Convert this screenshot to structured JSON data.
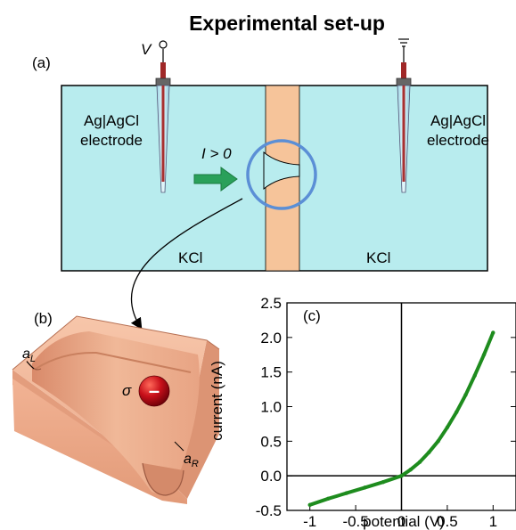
{
  "title": "Experimental set-up",
  "panel_a": {
    "label": "(a)",
    "voltage_symbol": "V",
    "left_electrode": [
      "Ag|AgCl",
      "electrode"
    ],
    "right_electrode": [
      "Ag|AgCl",
      "electrode"
    ],
    "current_label": "I > 0",
    "left_solution": "KCl",
    "right_solution": "KCl",
    "colors": {
      "bath": "#b8ecee",
      "membrane": "#f6c49a",
      "highlight_circle": "#5b8fd6",
      "arrow": "#2aa05a"
    }
  },
  "panel_b": {
    "label": "(b)",
    "left_radius": "a",
    "left_radius_sub": "L",
    "right_radius": "a",
    "right_radius_sub": "R",
    "charge_symbol": "σ",
    "charge_sign": "–"
  },
  "panel_c": {
    "label": "(c)",
    "chart_data": {
      "type": "line",
      "xlabel": "potential (V)",
      "ylabel": "current (nA)",
      "xlim": [
        -1.25,
        1.25
      ],
      "ylim": [
        -0.5,
        2.5
      ],
      "xticks": [
        "-1",
        "-0.5",
        "0",
        "0.5",
        "1"
      ],
      "xtick_values": [
        -1,
        -0.5,
        0,
        0.5,
        1
      ],
      "yticks": [
        "-0.5",
        "0.0",
        "0.5",
        "1.0",
        "1.5",
        "2.0",
        "2.5"
      ],
      "ytick_values": [
        -0.5,
        0,
        0.5,
        1,
        1.5,
        2,
        2.5
      ],
      "series": [
        {
          "color": "#1e8c1e",
          "x": [
            -1.0,
            -0.8,
            -0.6,
            -0.4,
            -0.2,
            0.0,
            0.1,
            0.2,
            0.3,
            0.4,
            0.5,
            0.6,
            0.7,
            0.8,
            0.9,
            1.0
          ],
          "y": [
            -0.42,
            -0.33,
            -0.25,
            -0.17,
            -0.09,
            0.0,
            0.09,
            0.2,
            0.34,
            0.5,
            0.7,
            0.92,
            1.17,
            1.45,
            1.75,
            2.07
          ]
        }
      ]
    }
  }
}
